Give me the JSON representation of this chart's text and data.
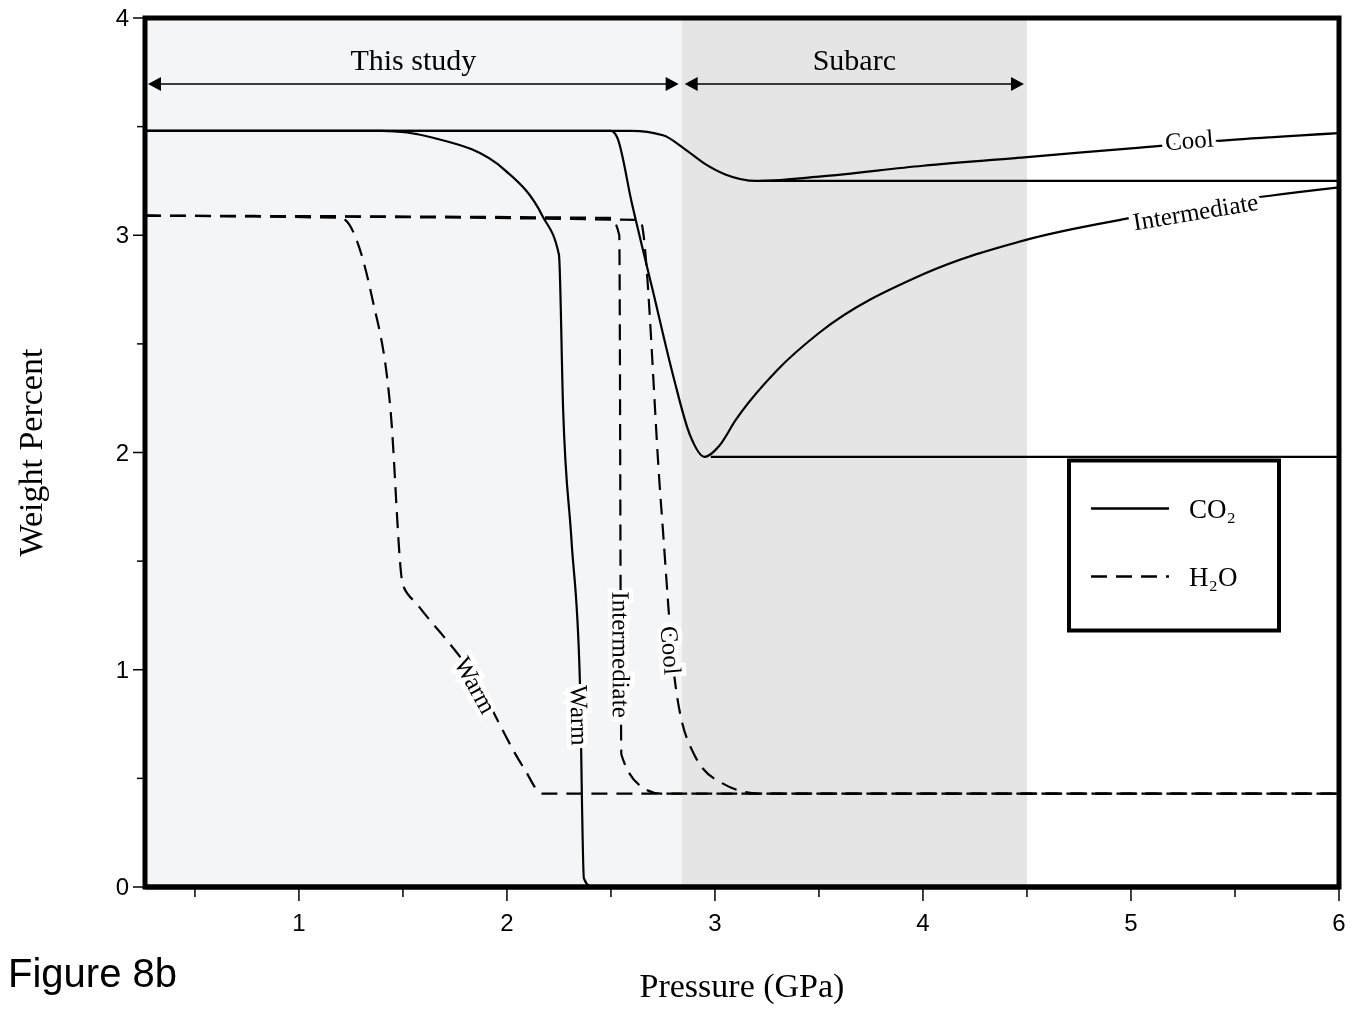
{
  "chart_data": {
    "type": "line",
    "xlabel": "Pressure (GPa)",
    "ylabel": "Weight Percent",
    "xlim": [
      0.26,
      6
    ],
    "ylim": [
      0,
      4
    ],
    "xticks": [
      {
        "value": 0.5,
        "label": null
      },
      1,
      {
        "value": 1.5,
        "label": null
      },
      2,
      {
        "value": 2.5,
        "label": null
      },
      3,
      {
        "value": 3.5,
        "label": null
      },
      4,
      {
        "value": 4.5,
        "label": null
      },
      5,
      {
        "value": 5.5,
        "label": null
      },
      6
    ],
    "yticks": [
      0,
      {
        "value": 0.5,
        "label": null
      },
      1,
      {
        "value": 1.5,
        "label": null
      },
      2,
      {
        "value": 2.5,
        "label": null
      },
      3,
      {
        "value": 3.5,
        "label": null
      },
      4
    ],
    "grid": false,
    "legend": "right",
    "bands": [
      {
        "axis": "x",
        "from": 0.26,
        "to": 2.84,
        "label": "This study",
        "color": "#f3f5f7"
      },
      {
        "axis": "x",
        "from": 2.84,
        "to": 4.5,
        "label": "Subarc",
        "color": "#e5e5e5"
      }
    ],
    "series": [
      {
        "name": "CO₂",
        "color": "#000000",
        "line_style": "solid",
        "x": [
          0.26,
          2.6,
          2.75,
          2.85,
          2.95,
          3.05,
          3.2,
          3.5,
          4,
          4.5,
          5,
          5.5,
          6
        ],
        "values": [
          3.48,
          3.48,
          3.46,
          3.4,
          3.33,
          3.28,
          3.25,
          3.27,
          3.32,
          3.36,
          3.4,
          3.44,
          3.47
        ]
      },
      {
        "color": "#000000",
        "line_style": "solid",
        "x": [
          0.26,
          2.5,
          2.53,
          2.6,
          2.7,
          2.8,
          2.88,
          2.95,
          3.02,
          3.1,
          3.3,
          3.5,
          4,
          4.5,
          5,
          5.5,
          6
        ],
        "values": [
          3.48,
          3.48,
          3.45,
          3.15,
          2.75,
          2.35,
          2.08,
          1.98,
          2.03,
          2.15,
          2.38,
          2.55,
          2.82,
          2.98,
          3.08,
          3.16,
          3.22
        ]
      },
      {
        "color": "#000000",
        "line_style": "solid",
        "x": [
          0.26,
          1.4,
          1.64,
          1.99,
          2.17,
          2.25,
          2.27,
          2.31,
          2.35,
          2.37,
          2.4
        ],
        "values": [
          3.48,
          3.48,
          3.45,
          3.3,
          3.09,
          2.91,
          2.2,
          1.6,
          0.97,
          0.04,
          0
        ]
      },
      {
        "name": "H₂O",
        "color": "#000000",
        "line_style": "dashed",
        "x": [
          0.26,
          2.64,
          2.74,
          2.81,
          2.9,
          3.03,
          3.21,
          6
        ],
        "values": [
          3.09,
          3.07,
          1.77,
          0.93,
          0.61,
          0.48,
          0.43,
          0.43
        ]
      },
      {
        "color": "#000000",
        "line_style": "dashed",
        "x": [
          0.26,
          2.5,
          2.54,
          2.55,
          2.65,
          2.74,
          6
        ],
        "values": [
          3.09,
          3.08,
          3.0,
          0.61,
          0.46,
          0.43,
          0.43
        ]
      },
      {
        "color": "#000000",
        "line_style": "dashed",
        "x": [
          0.26,
          1.2,
          1.35,
          1.44,
          1.5,
          1.57,
          1.84,
          2.08,
          2.17,
          6
        ],
        "values": [
          3.09,
          3.08,
          2.72,
          2.2,
          1.39,
          1.3,
          0.97,
          0.55,
          0.43,
          0.43
        ]
      },
      {
        "color": "#000000",
        "line_style": "solid",
        "x": [
          3.22,
          6
        ],
        "values": [
          3.25,
          3.25
        ]
      },
      {
        "color": "#000000",
        "line_style": "solid",
        "x": [
          2.98,
          6
        ],
        "values": [
          1.98,
          1.98
        ]
      }
    ],
    "annotations": [
      {
        "text": "Cool",
        "x": 5.28,
        "y": 3.44
      },
      {
        "text": "Intermediate",
        "x": 5.31,
        "y": 3.11
      },
      {
        "text": "Warm",
        "x": 2.35,
        "y": 0.79
      },
      {
        "text": "Cool",
        "x": 2.79,
        "y": 1.09
      },
      {
        "text": "Intermediate",
        "x": 2.55,
        "y": 1.07
      },
      {
        "text": "Warm",
        "x": 1.85,
        "y": 0.93
      },
      "Figure 8b"
    ]
  }
}
